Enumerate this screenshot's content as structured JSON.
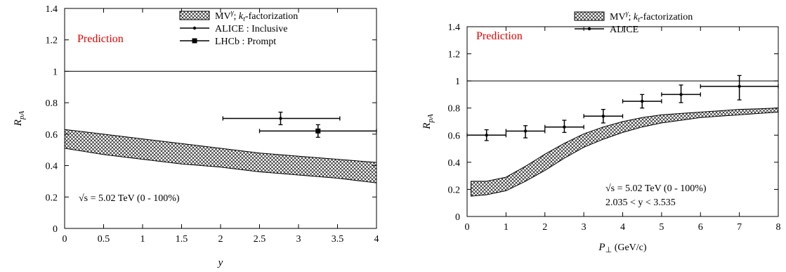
{
  "chart_data": [
    {
      "type": "line",
      "annotation_top": "Prediction",
      "annotation_bottom": [
        "√s = 5.02 TeV  (0 - 100%)"
      ],
      "xlabel": "y",
      "ylabel": "R_pA",
      "xlim": [
        0,
        4
      ],
      "ylim": [
        0,
        1.4
      ],
      "x_ticks": [
        "0",
        "0.5",
        "1",
        "1.5",
        "2",
        "2.5",
        "3",
        "3.5",
        "4"
      ],
      "y_ticks": [
        "0",
        "0.2",
        "0.4",
        "0.6",
        "0.8",
        "1",
        "1.2",
        "1.4"
      ],
      "reference_line": 1,
      "legend": [
        "MV^γ; k_t-factorization",
        "ALICE : Inclusive",
        "LHCb : Prompt"
      ],
      "band": {
        "name": "MV^γ; k_t-factorization",
        "x": [
          0,
          0.5,
          1,
          1.5,
          2,
          2.5,
          3,
          3.5,
          4
        ],
        "lower": [
          0.51,
          0.47,
          0.44,
          0.41,
          0.39,
          0.36,
          0.34,
          0.32,
          0.29
        ],
        "upper": [
          0.63,
          0.6,
          0.57,
          0.54,
          0.51,
          0.48,
          0.46,
          0.44,
          0.42
        ]
      },
      "points": [
        {
          "series": "ALICE : Inclusive",
          "marker": "circle",
          "x": 2.77,
          "y": 0.7,
          "xerr": [
            2.03,
            3.53
          ],
          "yerr": [
            0.66,
            0.74
          ]
        },
        {
          "series": "LHCb : Prompt",
          "marker": "square",
          "x": 3.25,
          "y": 0.62,
          "xerr": [
            2.5,
            4.0
          ],
          "yerr": [
            0.58,
            0.66
          ]
        }
      ]
    },
    {
      "type": "line",
      "annotation_top": "Prediction",
      "annotation_bottom": [
        "√s = 5.02 TeV  (0 - 100%)",
        "2.035 < y < 3.535"
      ],
      "xlabel": "P⊥ (GeV/c)",
      "ylabel": "R_pA",
      "xlim": [
        0,
        8
      ],
      "ylim": [
        0,
        1.4
      ],
      "x_ticks": [
        "0",
        "1",
        "2",
        "3",
        "4",
        "5",
        "6",
        "7",
        "8"
      ],
      "y_ticks": [
        "0",
        "0.2",
        "0.4",
        "0.6",
        "0.8",
        "1",
        "1.2",
        "1.4"
      ],
      "reference_line": 1,
      "legend": [
        "MV^γ; k_t-factorization",
        "ALICE"
      ],
      "band": {
        "name": "MV^γ; k_t-factorization",
        "x": [
          0.1,
          0.5,
          1,
          1.5,
          2,
          2.5,
          3,
          3.5,
          4,
          4.5,
          5,
          5.5,
          6,
          6.5,
          7,
          7.5,
          8
        ],
        "lower": [
          0.15,
          0.16,
          0.19,
          0.26,
          0.34,
          0.43,
          0.51,
          0.57,
          0.62,
          0.66,
          0.69,
          0.71,
          0.73,
          0.74,
          0.75,
          0.76,
          0.77
        ],
        "upper": [
          0.26,
          0.26,
          0.29,
          0.37,
          0.46,
          0.54,
          0.61,
          0.66,
          0.7,
          0.73,
          0.75,
          0.76,
          0.77,
          0.78,
          0.79,
          0.795,
          0.8
        ]
      },
      "points": [
        {
          "series": "ALICE",
          "marker": "circle",
          "x": 0.5,
          "y": 0.6,
          "xerr": [
            0,
            1
          ],
          "yerr": [
            0.56,
            0.64
          ]
        },
        {
          "series": "ALICE",
          "marker": "circle",
          "x": 1.5,
          "y": 0.63,
          "xerr": [
            1,
            2
          ],
          "yerr": [
            0.58,
            0.67
          ]
        },
        {
          "series": "ALICE",
          "marker": "circle",
          "x": 2.5,
          "y": 0.66,
          "xerr": [
            2,
            3
          ],
          "yerr": [
            0.62,
            0.71
          ]
        },
        {
          "series": "ALICE",
          "marker": "circle",
          "x": 3.5,
          "y": 0.74,
          "xerr": [
            3,
            4
          ],
          "yerr": [
            0.69,
            0.79
          ]
        },
        {
          "series": "ALICE",
          "marker": "circle",
          "x": 4.5,
          "y": 0.85,
          "xerr": [
            4,
            5
          ],
          "yerr": [
            0.8,
            0.9
          ]
        },
        {
          "series": "ALICE",
          "marker": "circle",
          "x": 5.5,
          "y": 0.9,
          "xerr": [
            5,
            6
          ],
          "yerr": [
            0.84,
            0.97
          ]
        },
        {
          "series": "ALICE",
          "marker": "circle",
          "x": 7.0,
          "y": 0.96,
          "xerr": [
            6,
            8
          ],
          "yerr": [
            0.86,
            1.04
          ]
        }
      ]
    }
  ]
}
